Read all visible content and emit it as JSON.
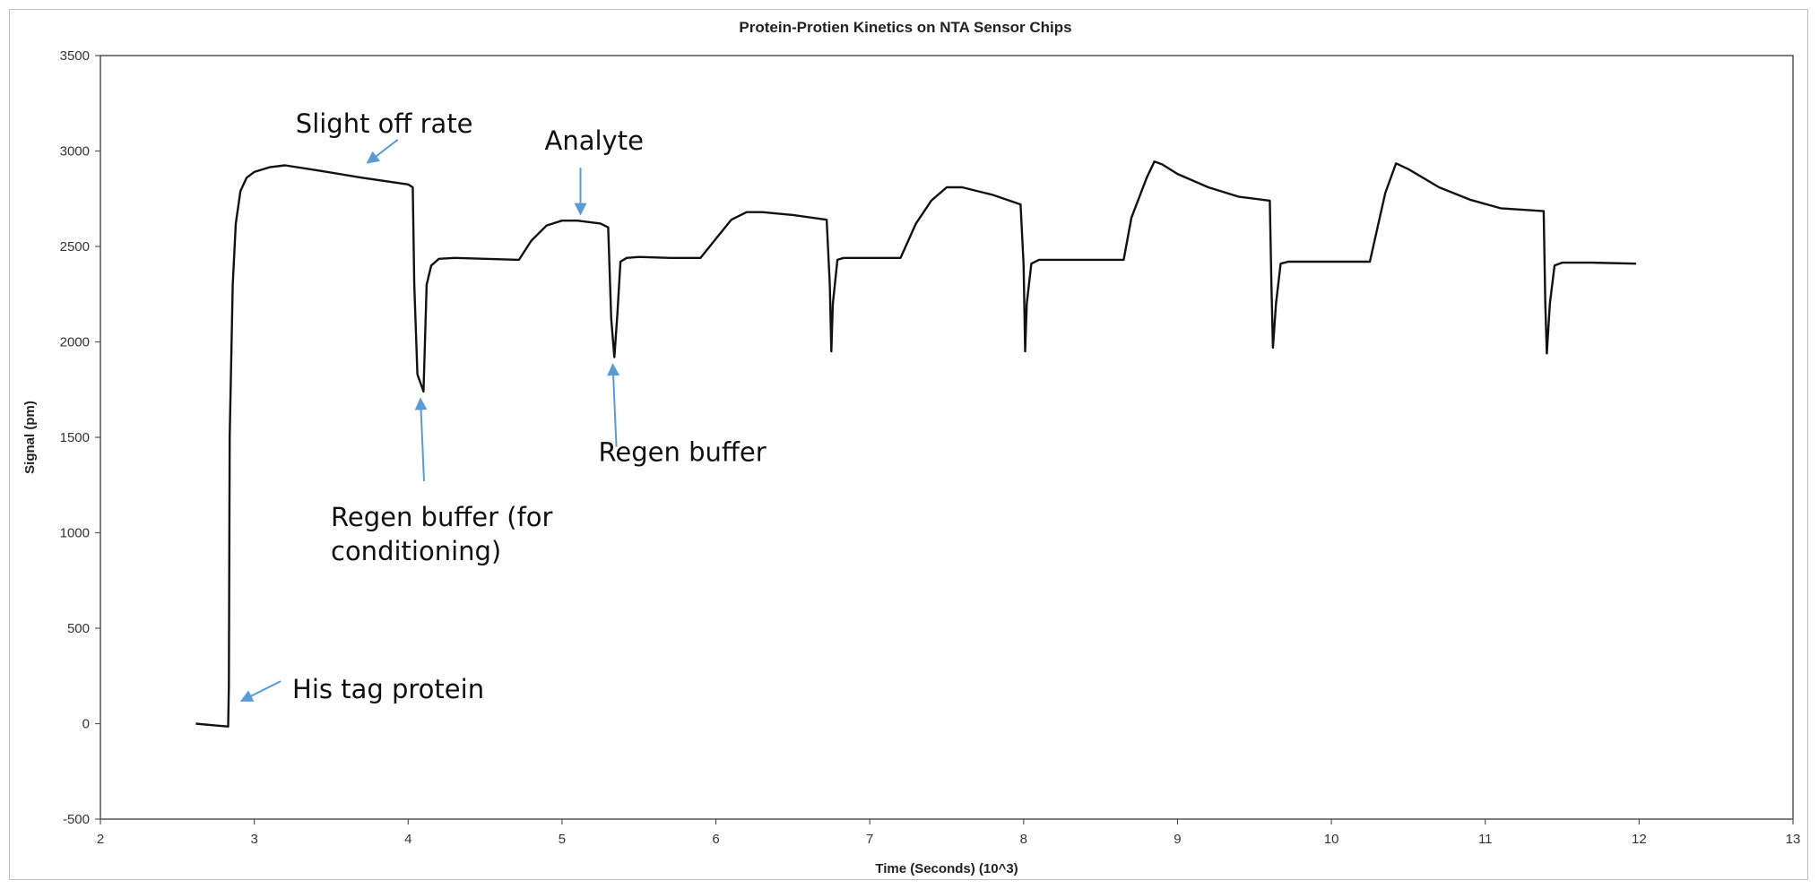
{
  "chart_data": {
    "type": "line",
    "title": "Protein-Protien Kinetics on NTA Sensor Chips",
    "xlabel": "Time (Seconds) (10^3)",
    "ylabel": "Signal (pm)",
    "xlim": [
      2,
      13
    ],
    "ylim": [
      -500,
      3500
    ],
    "xticks": [
      2,
      3,
      4,
      5,
      6,
      7,
      8,
      9,
      10,
      11,
      12,
      13
    ],
    "yticks": [
      -500,
      0,
      500,
      1000,
      1500,
      2000,
      2500,
      3000,
      3500
    ],
    "grid": false,
    "legend": "none",
    "line_color": "#111111",
    "annotation_color": "#5b9bd5",
    "series": [
      {
        "x": [
          2.62,
          2.75,
          2.83,
          2.835,
          2.84,
          2.86,
          2.88,
          2.91,
          2.95,
          3.0,
          3.1,
          3.2,
          3.4,
          3.7,
          4.0,
          4.03,
          4.04,
          4.06,
          4.1,
          4.12,
          4.15,
          4.2,
          4.3,
          4.5,
          4.72,
          4.8,
          4.9,
          5.0,
          5.1,
          5.25,
          5.3,
          5.32,
          5.34,
          5.36,
          5.38,
          5.42,
          5.5,
          5.7,
          5.9,
          6.0,
          6.1,
          6.2,
          6.3,
          6.5,
          6.72,
          6.74,
          6.75,
          6.76,
          6.79,
          6.83,
          7.0,
          7.2,
          7.3,
          7.4,
          7.5,
          7.6,
          7.8,
          7.98,
          8.0,
          8.01,
          8.02,
          8.05,
          8.1,
          8.3,
          8.65,
          8.7,
          8.8,
          8.85,
          8.9,
          9.0,
          9.2,
          9.4,
          9.6,
          9.61,
          9.62,
          9.64,
          9.67,
          9.72,
          10.0,
          10.25,
          10.35,
          10.42,
          10.5,
          10.7,
          10.9,
          11.1,
          11.38,
          11.39,
          11.4,
          11.42,
          11.45,
          11.5,
          11.7,
          11.98
        ],
        "y": [
          0,
          -10,
          -15,
          200,
          1500,
          2300,
          2620,
          2790,
          2860,
          2890,
          2915,
          2925,
          2900,
          2860,
          2825,
          2810,
          2300,
          1830,
          1740,
          2300,
          2400,
          2435,
          2440,
          2435,
          2430,
          2530,
          2610,
          2635,
          2635,
          2620,
          2600,
          2120,
          1920,
          2150,
          2420,
          2440,
          2445,
          2440,
          2440,
          2540,
          2640,
          2680,
          2680,
          2665,
          2640,
          2300,
          1950,
          2200,
          2430,
          2440,
          2440,
          2440,
          2620,
          2740,
          2810,
          2810,
          2770,
          2720,
          2400,
          1950,
          2200,
          2410,
          2430,
          2430,
          2430,
          2650,
          2860,
          2945,
          2930,
          2880,
          2810,
          2760,
          2740,
          2300,
          1970,
          2200,
          2410,
          2420,
          2420,
          2420,
          2780,
          2935,
          2905,
          2810,
          2745,
          2700,
          2685,
          2200,
          1940,
          2200,
          2400,
          2415,
          2415,
          2410
        ]
      }
    ],
    "annotations": [
      {
        "text": "Slight off rate",
        "x": 3.7,
        "y": 2900
      },
      {
        "text": "Analyte",
        "x": 5.12,
        "y": 2640
      },
      {
        "text": "Regen buffer (for",
        "x": 4.08,
        "y": 1740
      },
      {
        "text": "conditioning)",
        "x": 4.08,
        "y": 1740
      },
      {
        "text": "Regen buffer",
        "x": 5.33,
        "y": 1920
      },
      {
        "text": "His tag protein",
        "x": 2.88,
        "y": 100
      }
    ]
  }
}
